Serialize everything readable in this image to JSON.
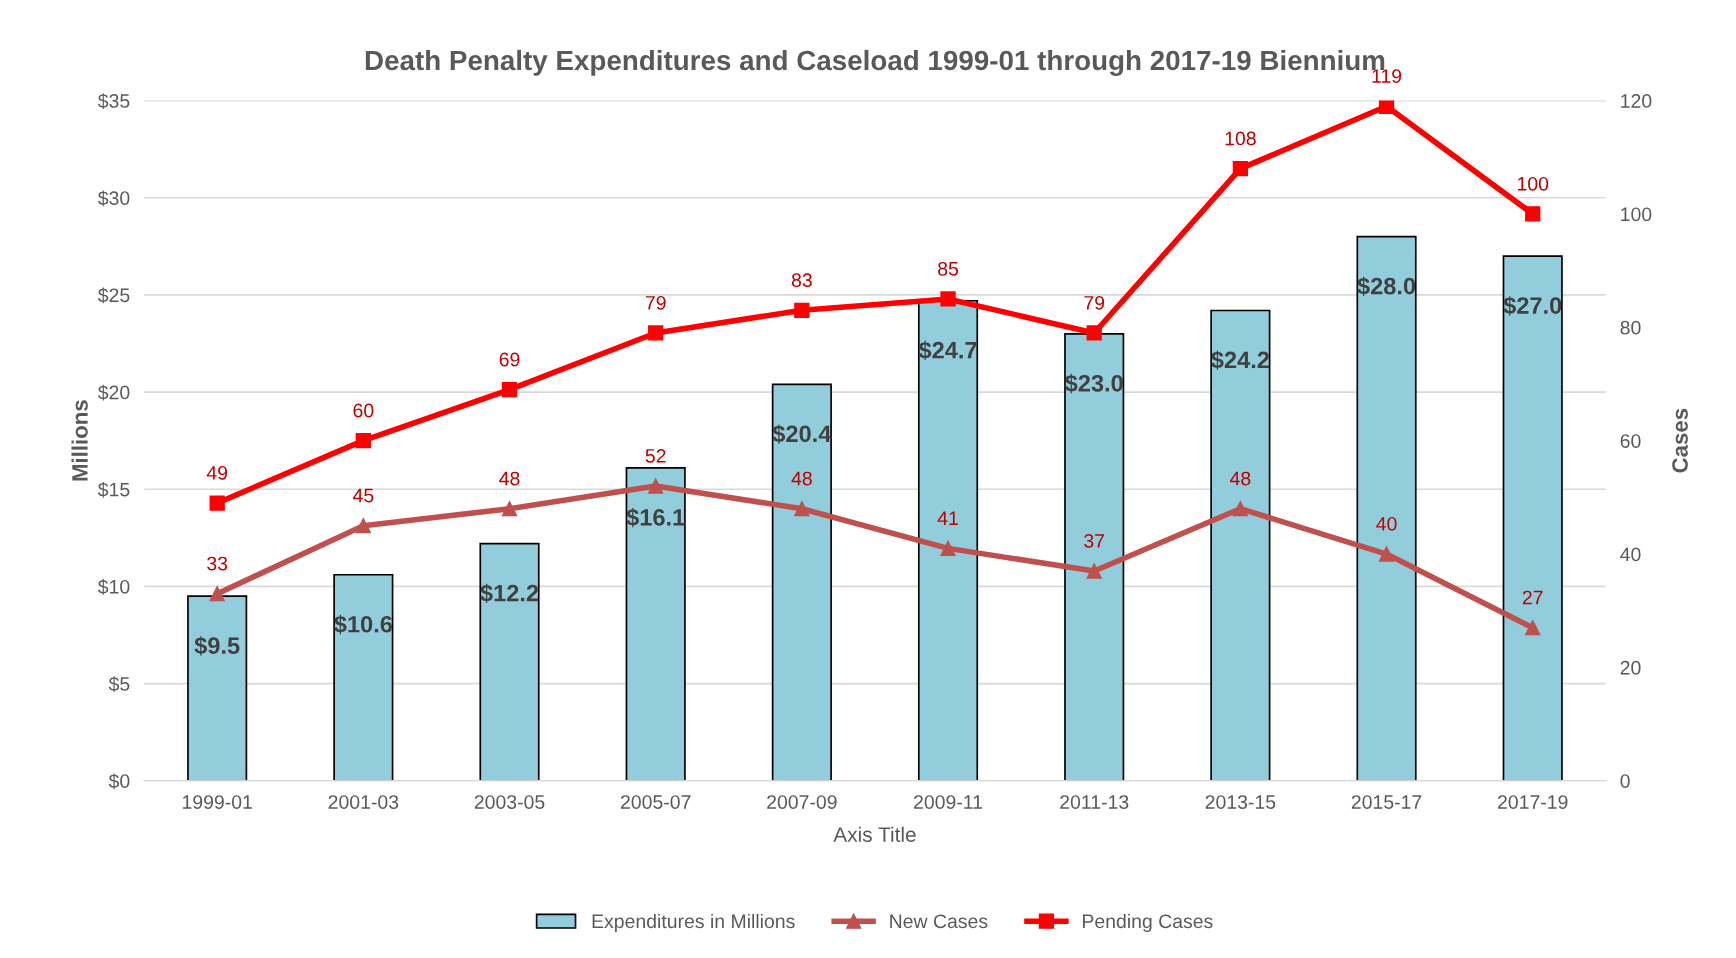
{
  "chart_data": {
    "type": "bar",
    "title": "Death Penalty Expenditures and Caseload 1999-01 through 2017-19 Biennium",
    "xlabel": "Axis Title",
    "ylabel": "Millions",
    "y2label": "Cases",
    "categories": [
      "1999-01",
      "2001-03",
      "2003-05",
      "2005-07",
      "2007-09",
      "2009-11",
      "2011-13",
      "2013-15",
      "2015-17",
      "2017-19"
    ],
    "series": [
      {
        "name": "Expenditures in Millions",
        "color": "#92cddc",
        "values": [
          9.5,
          10.6,
          12.2,
          16.1,
          20.4,
          24.7,
          23.0,
          24.2,
          28.0,
          27.0
        ],
        "value_labels": [
          "$9.5",
          "$10.6",
          "$12.2",
          "$16.1",
          "$20.4",
          "$24.7",
          "$23.0",
          "$24.2",
          "$28.0",
          "$27.0"
        ]
      },
      {
        "name": "New Cases",
        "type": "line",
        "axis": "y2",
        "marker": "triangle",
        "color": "#c0504d",
        "values": [
          33,
          45,
          48,
          52,
          48,
          41,
          37,
          48,
          40,
          27
        ],
        "value_labels": [
          "33",
          "45",
          "48",
          "52",
          "48",
          "41",
          "37",
          "48",
          "40",
          "27"
        ]
      },
      {
        "name": "Pending Cases",
        "type": "line",
        "axis": "y2",
        "marker": "square",
        "color": "#ff0000",
        "values": [
          49,
          60,
          69,
          79,
          83,
          85,
          79,
          108,
          119,
          100
        ],
        "value_labels": [
          "49",
          "60",
          "69",
          "79",
          "83",
          "85",
          "79",
          "108",
          "119",
          "100"
        ]
      }
    ],
    "ylim": [
      0,
      35
    ],
    "yticks": [
      {
        "value": 0,
        "label": "$0"
      },
      {
        "value": 5,
        "label": "$5"
      },
      {
        "value": 10,
        "label": "$10"
      },
      {
        "value": 15,
        "label": "$15"
      },
      {
        "value": 20,
        "label": "$20"
      },
      {
        "value": 25,
        "label": "$25"
      },
      {
        "value": 30,
        "label": "$30"
      },
      {
        "value": 35,
        "label": "$35"
      }
    ],
    "y2lim": [
      0,
      120
    ],
    "y2ticks": [
      0,
      20,
      40,
      60,
      80,
      100,
      120
    ],
    "grid": "y",
    "legend": "bottom"
  }
}
